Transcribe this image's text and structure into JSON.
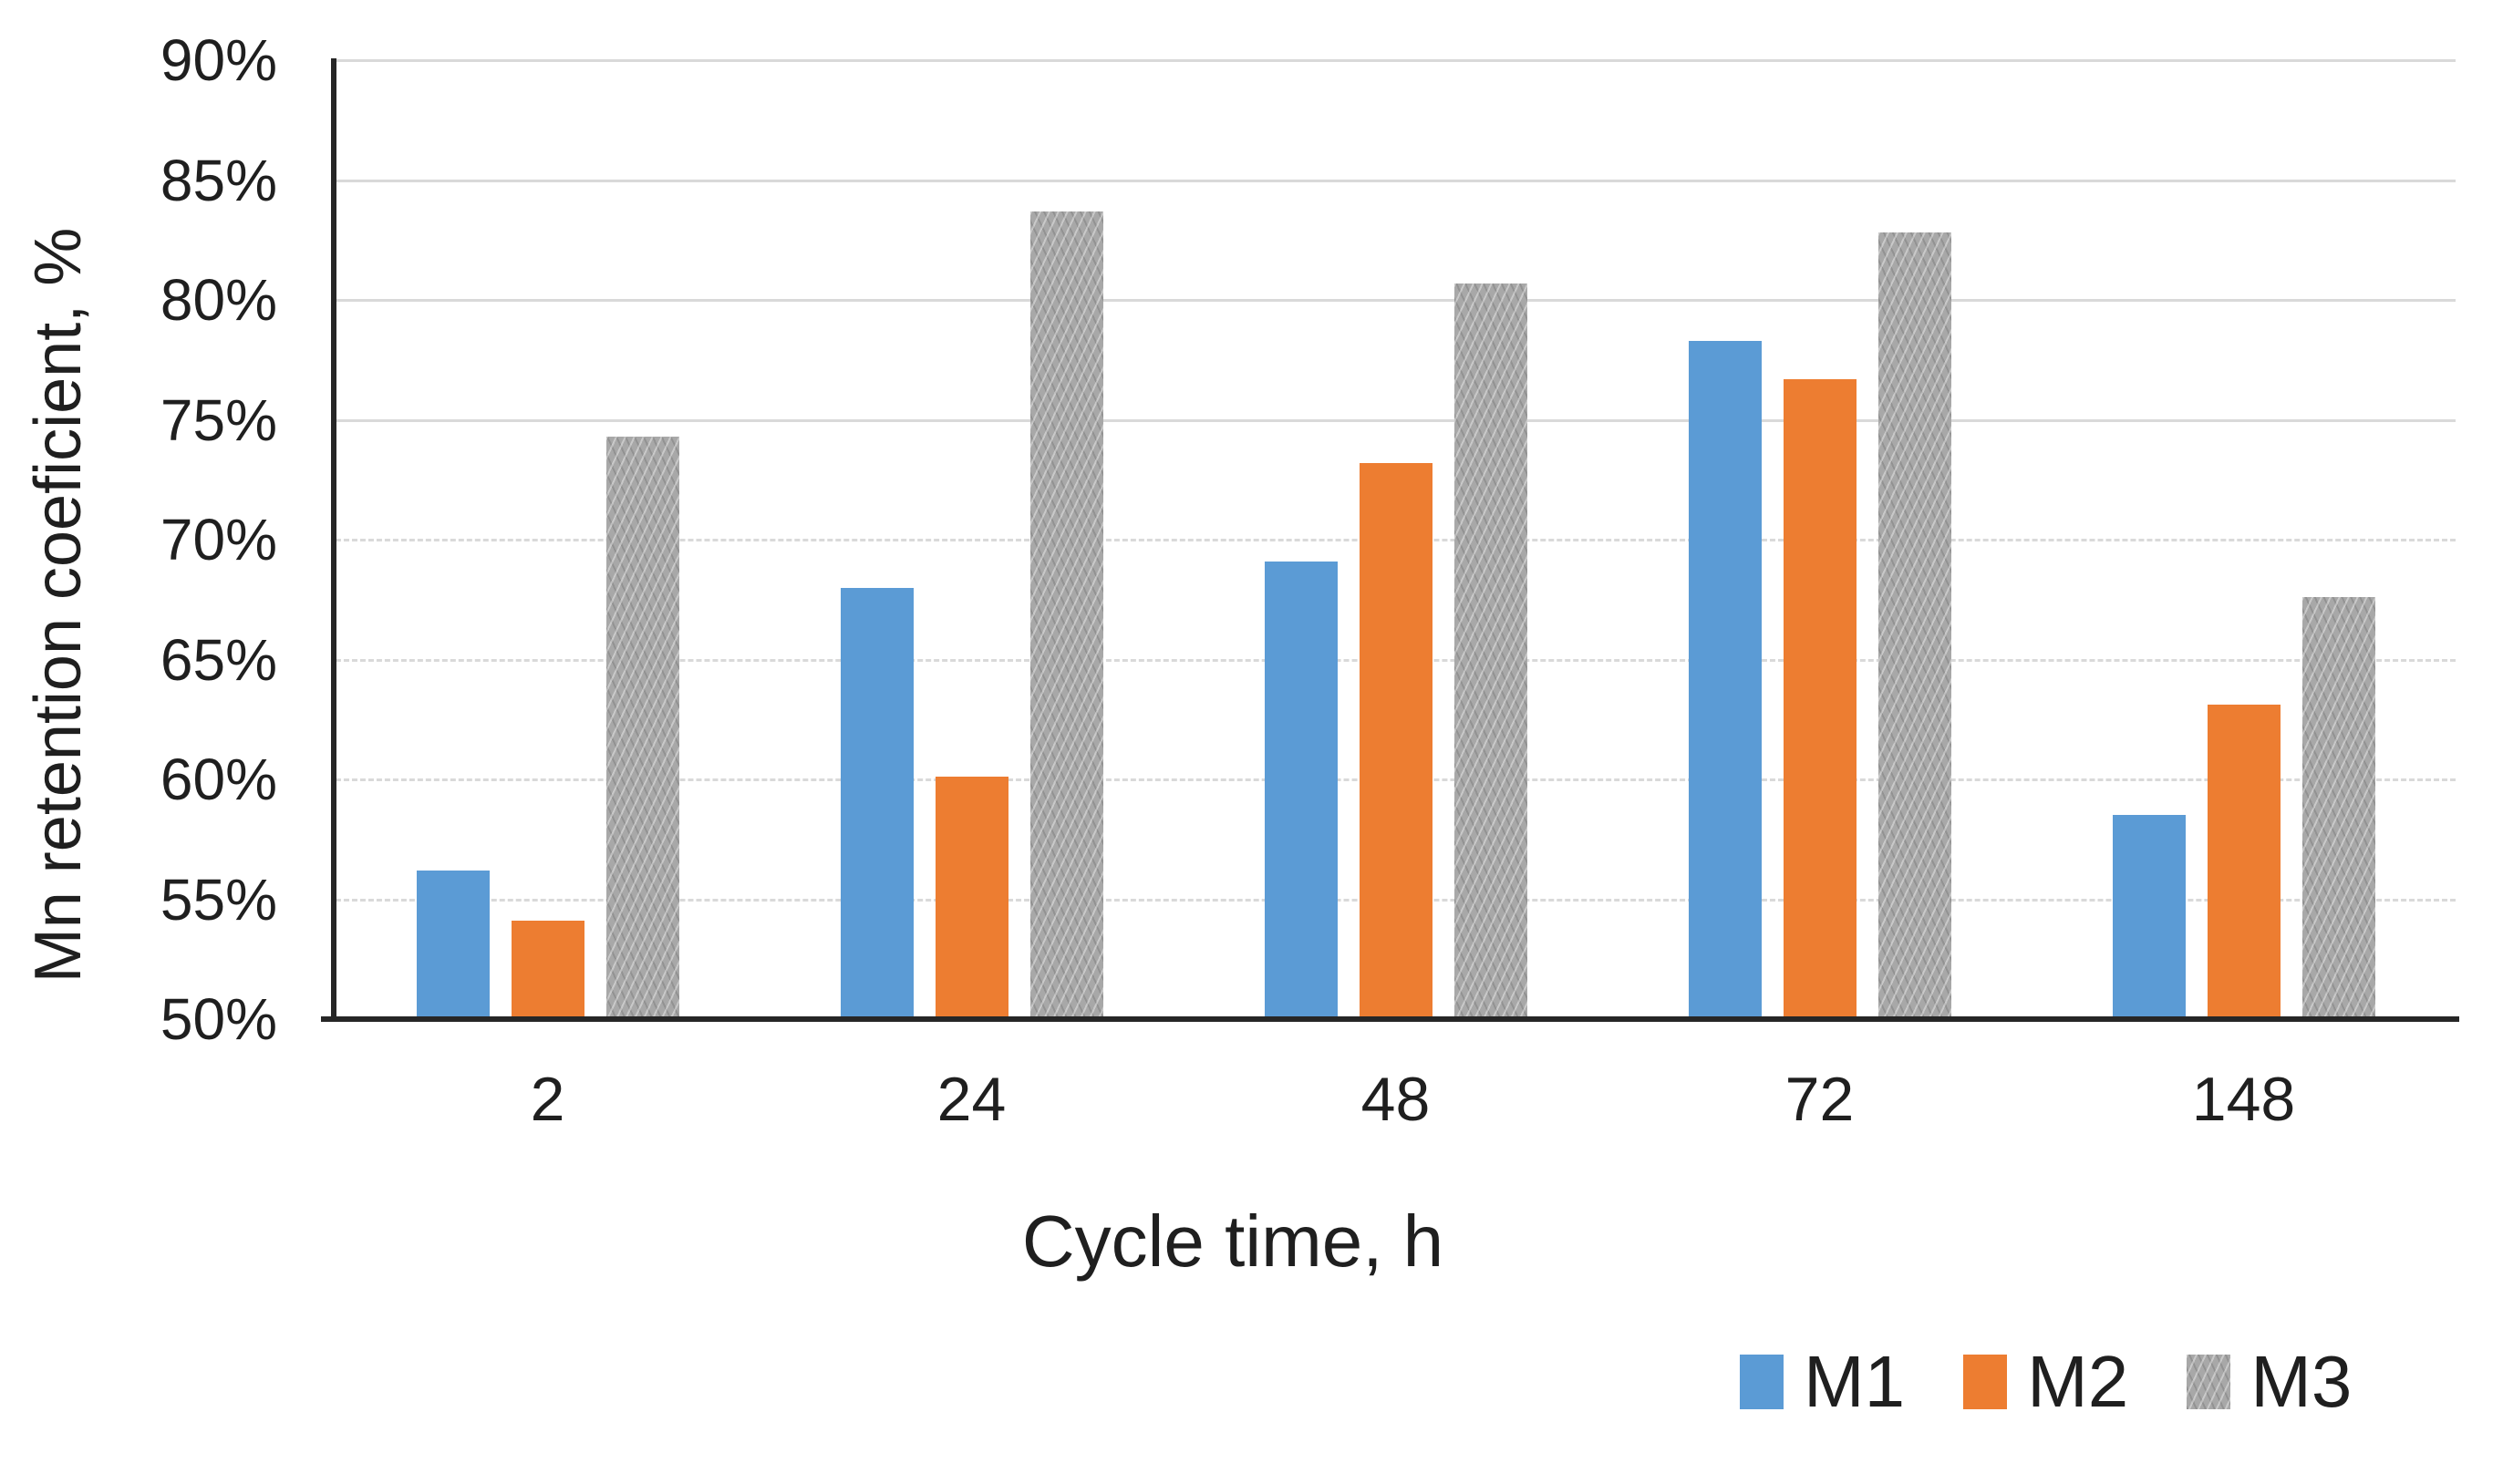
{
  "figure": {
    "background": "#ffffff",
    "text_color": "#1f1f1f",
    "axis_color": "#262626",
    "gridline_color": "#d9d9d9"
  },
  "chart_data": {
    "type": "bar",
    "title": "",
    "xlabel": "Cycle time, h",
    "ylabel": "Mn retention coeficient, %",
    "categories": [
      "2",
      "24",
      "48",
      "72",
      "148"
    ],
    "series": [
      {
        "name": "M1",
        "color": "#5B9BD5",
        "pattern": "solid",
        "values": [
          56.2,
          68.0,
          69.1,
          78.3,
          58.5
        ]
      },
      {
        "name": "M2",
        "color": "#ED7D31",
        "pattern": "solid",
        "values": [
          54.1,
          60.1,
          73.2,
          76.7,
          63.1
        ]
      },
      {
        "name": "M3",
        "color": "#A8A8A8",
        "pattern": "zigzag",
        "values": [
          74.3,
          83.7,
          80.7,
          82.8,
          67.6
        ]
      }
    ],
    "ylim": [
      50,
      90
    ],
    "ytick_values": [
      50,
      55,
      60,
      65,
      70,
      75,
      80,
      85,
      90
    ],
    "ytick_labels": [
      "50%",
      "55%",
      "60%",
      "65%",
      "70%",
      "75%",
      "80%",
      "85%",
      "90%"
    ],
    "grid": "horizontal",
    "legend_position": "bottom-right"
  }
}
